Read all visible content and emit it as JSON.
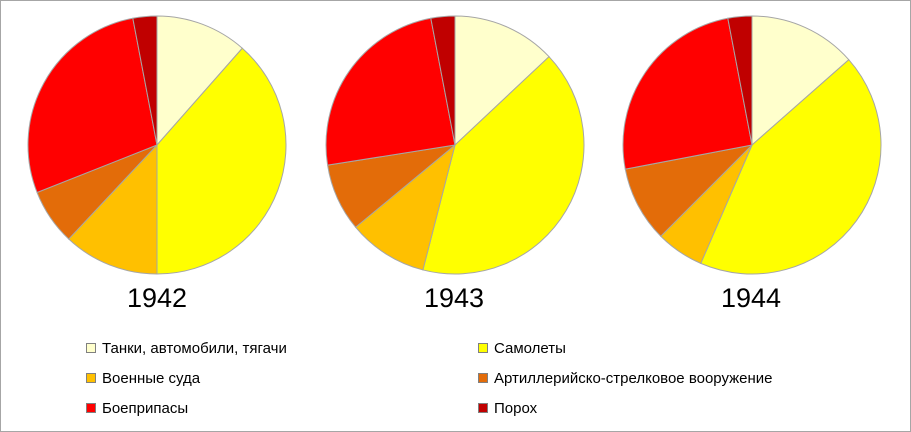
{
  "chart_data": {
    "type": "pie",
    "categories": [
      "Танки, автомобили, тягачи",
      "Самолеты",
      "Военные суда",
      "Артиллерийско-стрелковое вооружение",
      "Боеприпасы",
      "Порох"
    ],
    "colors": [
      "#FFFFCC",
      "#FFFF00",
      "#FFC000",
      "#E36C09",
      "#FF0000",
      "#C00000"
    ],
    "charts": [
      {
        "label": "1942",
        "values": [
          11.5,
          38.5,
          12.0,
          7.0,
          28.0,
          3.0
        ]
      },
      {
        "label": "1943",
        "values": [
          13.0,
          41.0,
          10.0,
          8.5,
          24.5,
          3.0
        ]
      },
      {
        "label": "1944",
        "values": [
          13.5,
          43.0,
          6.0,
          9.5,
          25.0,
          3.0
        ]
      }
    ],
    "legend_position": "bottom"
  }
}
